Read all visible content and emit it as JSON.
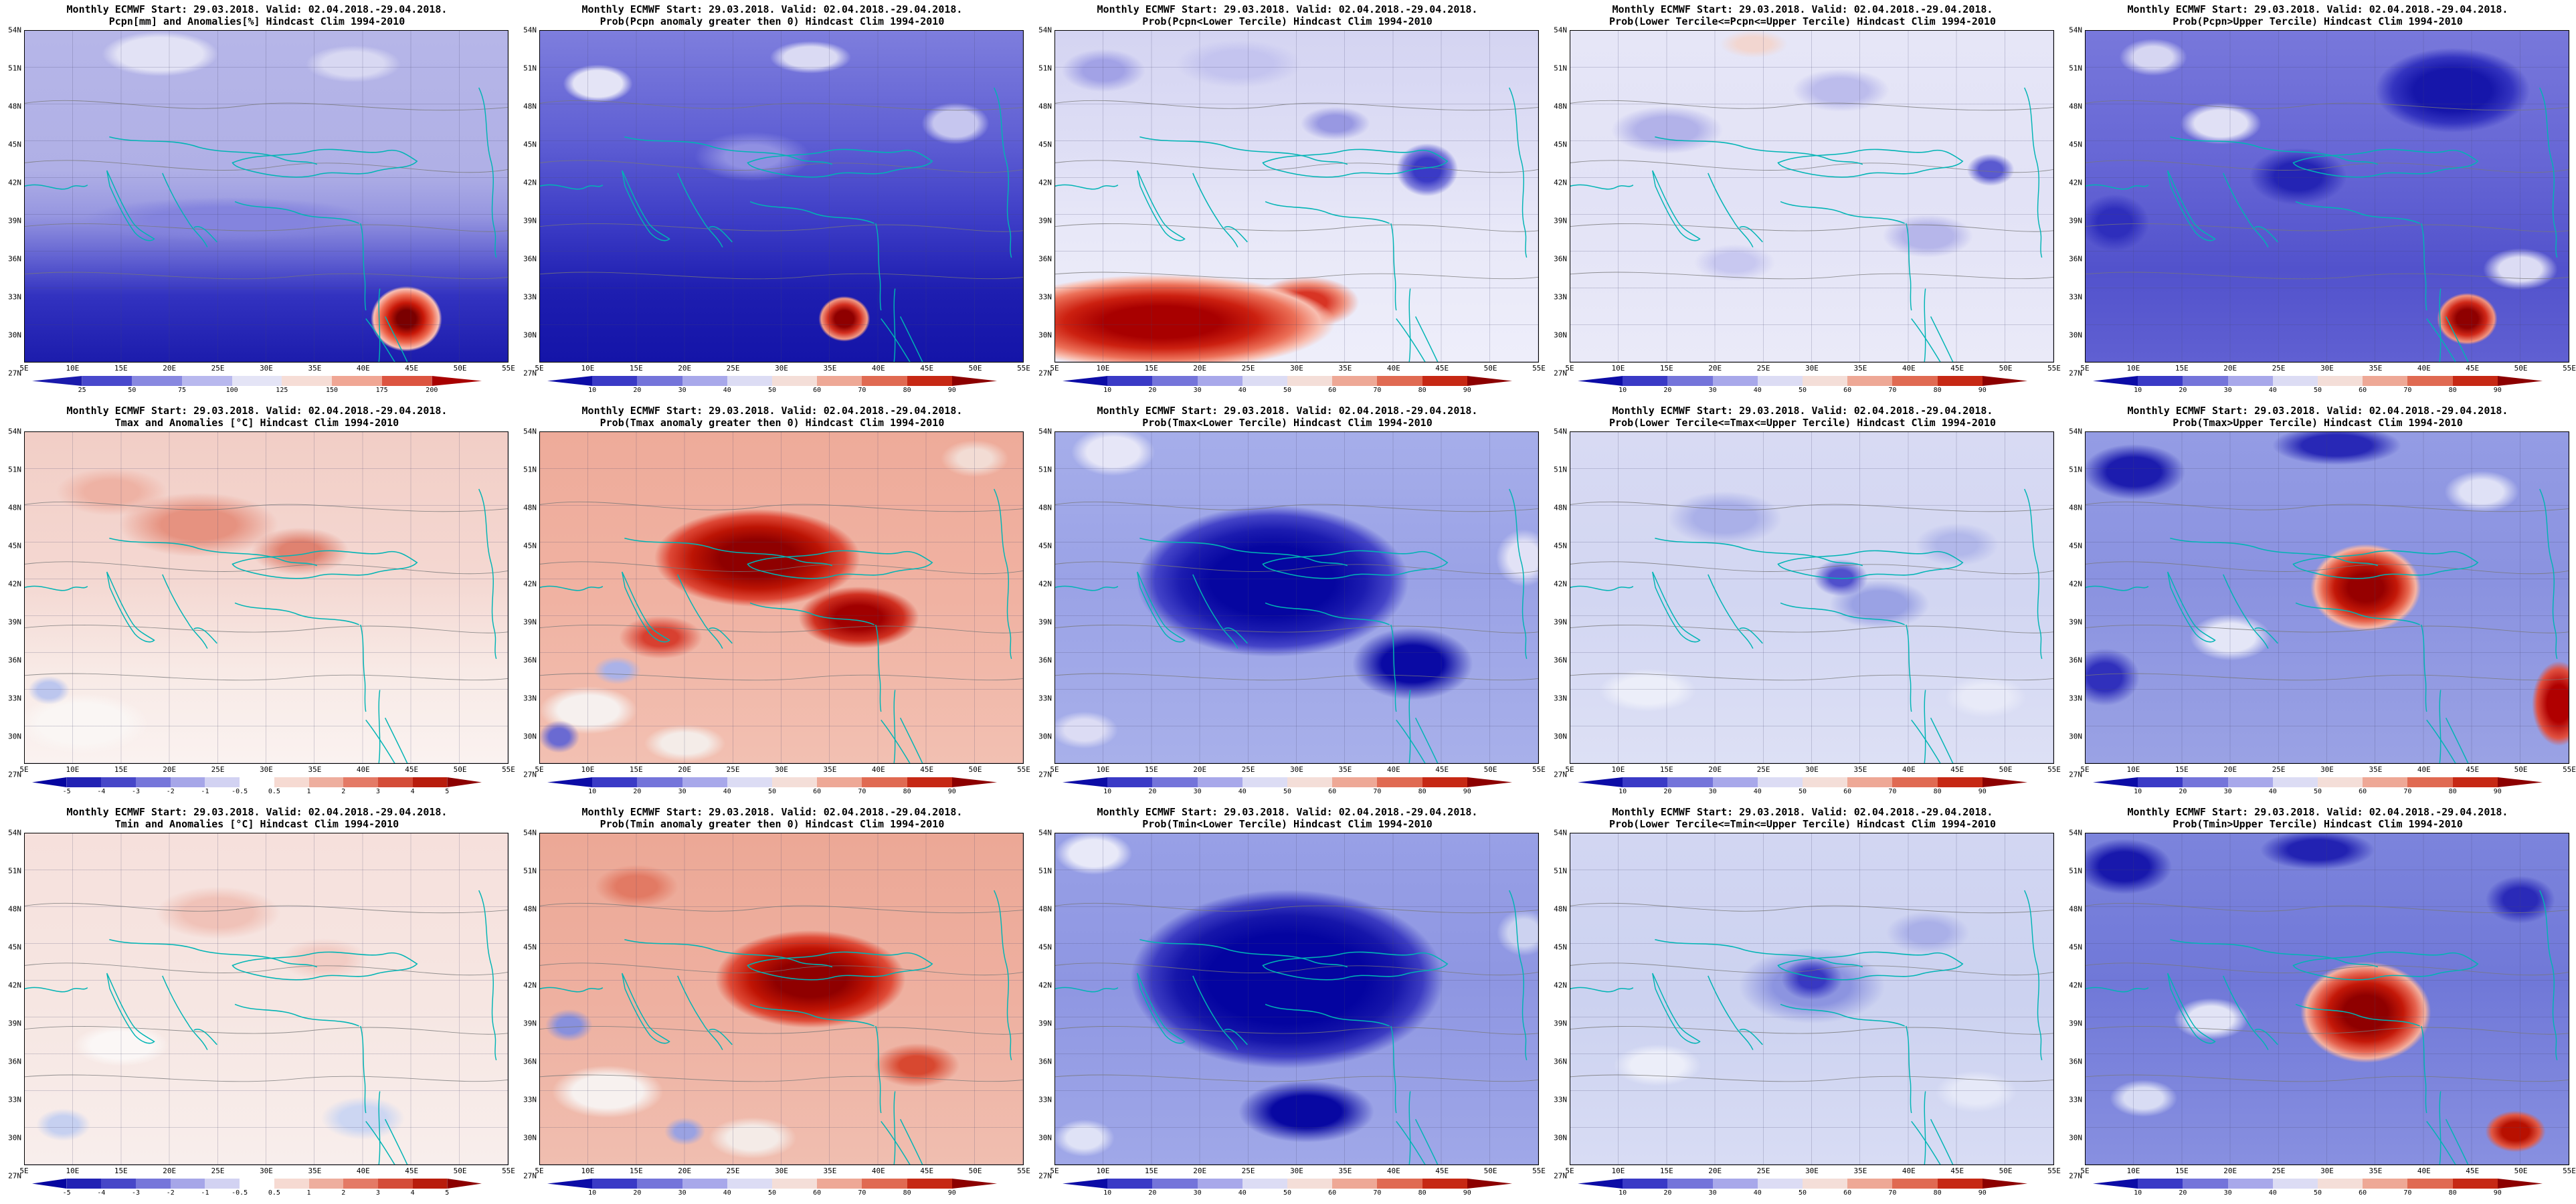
{
  "shared": {
    "title_line1": "Monthly ECMWF Start: 29.03.2018. Valid: 02.04.2018.-29.04.2018.",
    "axes": {
      "lat_ticks": [
        "54N",
        "51N",
        "48N",
        "45N",
        "42N",
        "39N",
        "36N",
        "33N",
        "30N",
        "27N"
      ],
      "lon_ticks": [
        "5E",
        "10E",
        "15E",
        "20E",
        "25E",
        "30E",
        "35E",
        "40E",
        "45E",
        "50E",
        "55E"
      ]
    },
    "colorbars": {
      "pcpn_amount": {
        "ticks": [
          "25",
          "50",
          "75",
          "100",
          "125",
          "150",
          "175",
          "200"
        ],
        "colors": [
          "#1a1aac",
          "#4848cc",
          "#8888e0",
          "#b8b8ee",
          "#e4e4f6",
          "#f6ddd6",
          "#f0a694",
          "#dc5440",
          "#a80000"
        ]
      },
      "probability": {
        "ticks": [
          "10",
          "20",
          "30",
          "40",
          "50",
          "60",
          "70",
          "80",
          "90"
        ],
        "colors": [
          "#0c0ca6",
          "#3a3ac6",
          "#7474da",
          "#a8a8ea",
          "#dcdcf4",
          "#f4ded8",
          "#eea896",
          "#e06a52",
          "#c62814",
          "#8c0000"
        ]
      },
      "temp_anomaly": {
        "ticks": [
          "-5",
          "-4",
          "-3",
          "-2",
          "-1",
          "-0.5",
          "0.5",
          "1",
          "2",
          "3",
          "4",
          "5"
        ],
        "colors": [
          "#0606a0",
          "#2222b4",
          "#4646c8",
          "#7676da",
          "#a6a6e8",
          "#d2d2f2",
          "#ffffff",
          "#f6dad2",
          "#eeae9e",
          "#e47a66",
          "#d44c38",
          "#b81c0c",
          "#8c0000"
        ]
      }
    },
    "map_colors": {
      "coastline": "#00b4b4",
      "contour": "#787878",
      "frame": "#000000"
    }
  },
  "panels": [
    {
      "subtitle": "Pcpn[mm] and Anomalies[%] Hindcast Clim 1994-2010",
      "colorbar": "pcpn_amount"
    },
    {
      "subtitle": "Prob(Pcpn anomaly greater then 0) Hindcast Clim 1994-2010",
      "colorbar": "probability"
    },
    {
      "subtitle": "Prob(Pcpn<Lower Tercile) Hindcast Clim 1994-2010",
      "colorbar": "probability"
    },
    {
      "subtitle": "Prob(Lower Tercile<=Pcpn<=Upper Tercile) Hindcast Clim 1994-2010",
      "colorbar": "probability"
    },
    {
      "subtitle": "Prob(Pcpn>Upper Tercile) Hindcast Clim 1994-2010",
      "colorbar": "probability"
    },
    {
      "subtitle": "Tmax and Anomalies [°C] Hindcast Clim 1994-2010",
      "colorbar": "temp_anomaly"
    },
    {
      "subtitle": "Prob(Tmax anomaly greater then 0) Hindcast Clim 1994-2010",
      "colorbar": "probability"
    },
    {
      "subtitle": "Prob(Tmax<Lower Tercile) Hindcast Clim 1994-2010",
      "colorbar": "probability"
    },
    {
      "subtitle": "Prob(Lower Tercile<=Tmax<=Upper Tercile) Hindcast Clim 1994-2010",
      "colorbar": "probability"
    },
    {
      "subtitle": "Prob(Tmax>Upper Tercile) Hindcast Clim 1994-2010",
      "colorbar": "probability"
    },
    {
      "subtitle": "Tmin and Anomalies [°C] Hindcast Clim 1994-2010",
      "colorbar": "temp_anomaly"
    },
    {
      "subtitle": "Prob(Tmin anomaly greater then 0) Hindcast Clim 1994-2010",
      "colorbar": "probability"
    },
    {
      "subtitle": "Prob(Tmin<Lower Tercile) Hindcast Clim 1994-2010",
      "colorbar": "probability"
    },
    {
      "subtitle": "Prob(Lower Tercile<=Tmin<=Upper Tercile) Hindcast Clim 1994-2010",
      "colorbar": "probability"
    },
    {
      "subtitle": "Prob(Tmin>Upper Tercile) Hindcast Clim 1994-2010",
      "colorbar": "probability"
    }
  ]
}
